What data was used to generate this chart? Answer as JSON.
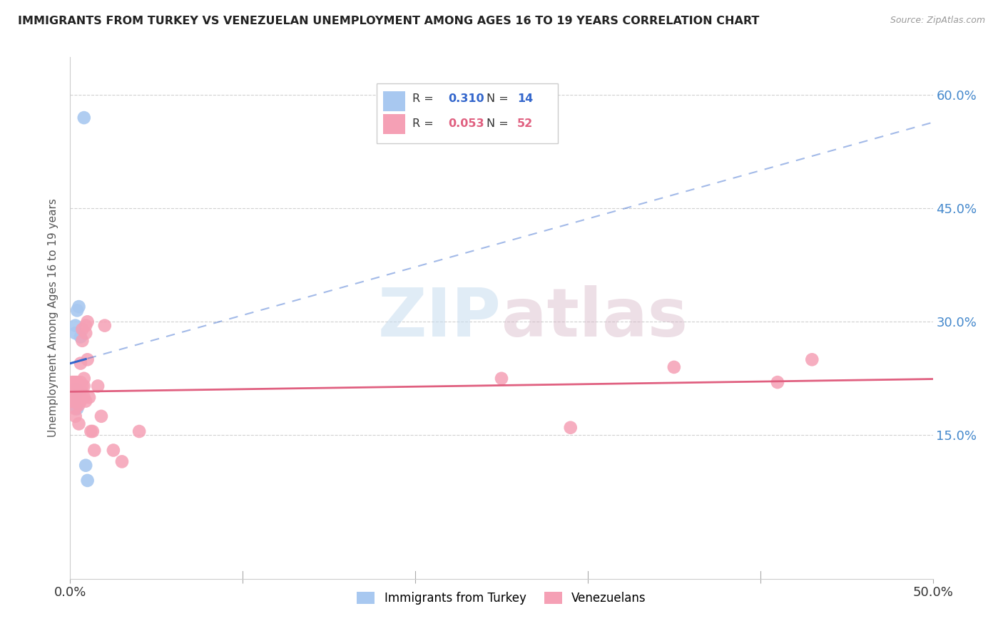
{
  "title": "IMMIGRANTS FROM TURKEY VS VENEZUELAN UNEMPLOYMENT AMONG AGES 16 TO 19 YEARS CORRELATION CHART",
  "source": "Source: ZipAtlas.com",
  "ylabel": "Unemployment Among Ages 16 to 19 years",
  "yticks": [
    0.0,
    0.15,
    0.3,
    0.45,
    0.6
  ],
  "ytick_labels": [
    "",
    "15.0%",
    "30.0%",
    "45.0%",
    "60.0%"
  ],
  "xlim": [
    0.0,
    0.5
  ],
  "ylim": [
    -0.04,
    0.65
  ],
  "label1": "Immigrants from Turkey",
  "label2": "Venezuelans",
  "color1": "#a8c8f0",
  "color2": "#f5a0b5",
  "line1_color": "#3366cc",
  "line2_color": "#e06080",
  "watermark_zip": "ZIP",
  "watermark_atlas": "atlas",
  "background_color": "#ffffff",
  "turkey_x": [
    0.001,
    0.002,
    0.002,
    0.003,
    0.003,
    0.003,
    0.004,
    0.004,
    0.004,
    0.005,
    0.006,
    0.008,
    0.009,
    0.01
  ],
  "turkey_y": [
    0.205,
    0.21,
    0.195,
    0.2,
    0.285,
    0.295,
    0.185,
    0.21,
    0.315,
    0.32,
    0.28,
    0.57,
    0.11,
    0.09
  ],
  "venezuela_x": [
    0.001,
    0.001,
    0.001,
    0.001,
    0.002,
    0.002,
    0.002,
    0.002,
    0.002,
    0.002,
    0.003,
    0.003,
    0.003,
    0.003,
    0.003,
    0.004,
    0.004,
    0.004,
    0.004,
    0.005,
    0.005,
    0.005,
    0.006,
    0.006,
    0.006,
    0.006,
    0.007,
    0.007,
    0.007,
    0.008,
    0.008,
    0.008,
    0.009,
    0.009,
    0.009,
    0.01,
    0.01,
    0.011,
    0.012,
    0.013,
    0.014,
    0.016,
    0.018,
    0.02,
    0.025,
    0.03,
    0.04,
    0.25,
    0.29,
    0.35,
    0.41,
    0.43
  ],
  "venezuela_y": [
    0.195,
    0.2,
    0.21,
    0.22,
    0.195,
    0.2,
    0.205,
    0.21,
    0.22,
    0.195,
    0.175,
    0.185,
    0.2,
    0.22,
    0.195,
    0.195,
    0.2,
    0.215,
    0.22,
    0.165,
    0.19,
    0.215,
    0.21,
    0.22,
    0.195,
    0.245,
    0.215,
    0.275,
    0.29,
    0.2,
    0.215,
    0.225,
    0.195,
    0.285,
    0.295,
    0.25,
    0.3,
    0.2,
    0.155,
    0.155,
    0.13,
    0.215,
    0.175,
    0.295,
    0.13,
    0.115,
    0.155,
    0.225,
    0.16,
    0.24,
    0.22,
    0.25
  ]
}
